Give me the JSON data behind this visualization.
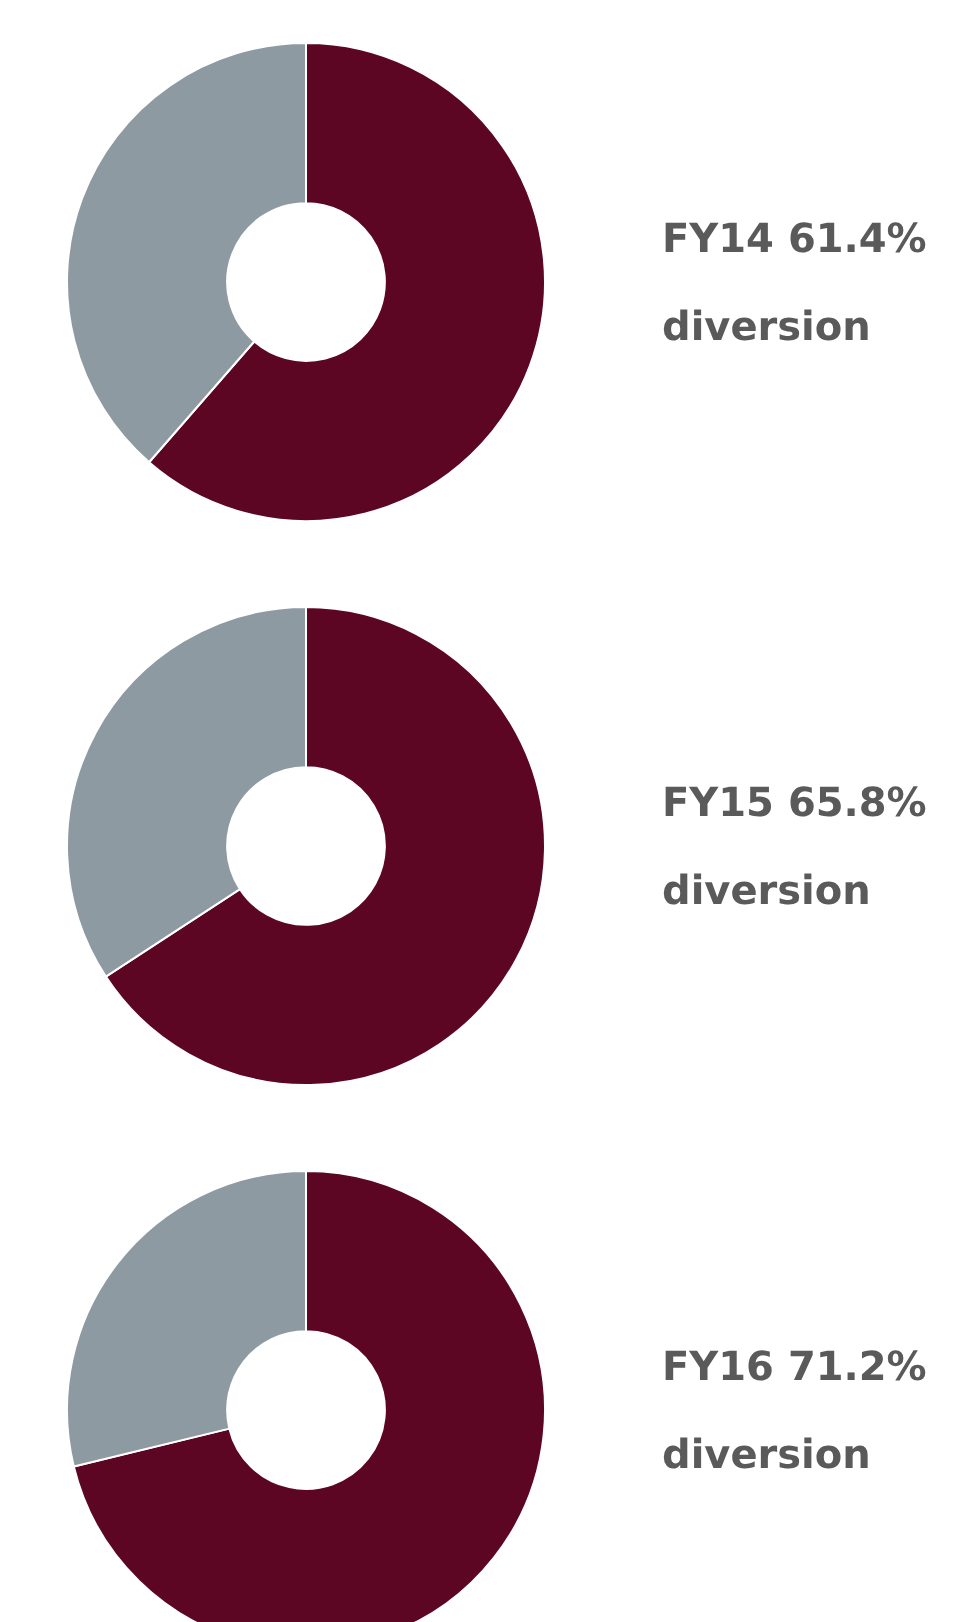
{
  "chart_data": [
    {
      "type": "donut",
      "categories": [
        null,
        null
      ],
      "values": [
        61.4,
        38.6
      ],
      "colors": [
        "#5c0624",
        "#8d9aa2"
      ],
      "annotations": [
        "FY14 61.4% diversion"
      ]
    },
    {
      "type": "donut",
      "categories": [
        null,
        null
      ],
      "values": [
        65.8,
        34.2
      ],
      "colors": [
        "#5c0624",
        "#8d9aa2"
      ],
      "annotations": [
        "FY15 65.8% diversion"
      ]
    },
    {
      "type": "donut",
      "categories": [
        null,
        null
      ],
      "values": [
        71.2,
        28.8
      ],
      "colors": [
        "#5c0624",
        "#8d9aa2"
      ],
      "annotations": [
        "FY16 71.2% diversion"
      ]
    }
  ]
}
